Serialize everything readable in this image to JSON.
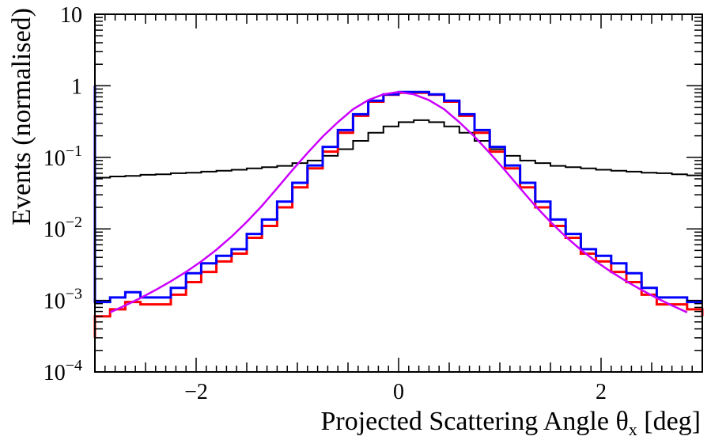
{
  "chart_data": {
    "type": "line",
    "title": "",
    "xlabel": "Projected Scattering Angle θx [deg]",
    "xlabel_parts": {
      "main": "Projected Scattering Angle θ",
      "sub": "x",
      "after": " [deg]"
    },
    "ylabel": "Events (normalised)",
    "xlim": [
      -3,
      3
    ],
    "ylim": [
      0.0001,
      10
    ],
    "yscale": "log",
    "x_ticks": [
      -2,
      0,
      2
    ],
    "x_tick_labels": [
      "−2",
      "0",
      "2"
    ],
    "y_ticks": [
      {
        "value": 10,
        "base": "10",
        "exp": ""
      },
      {
        "value": 1,
        "base": "1",
        "exp": ""
      },
      {
        "value": 0.1,
        "base": "10",
        "exp": "−1"
      },
      {
        "value": 0.01,
        "base": "10",
        "exp": "−2"
      },
      {
        "value": 0.001,
        "base": "10",
        "exp": "−3"
      },
      {
        "value": 0.0001,
        "base": "10",
        "exp": "−4"
      }
    ],
    "grid": false,
    "legend": "none",
    "bin_edges": [
      -3.0,
      -2.85,
      -2.7,
      -2.55,
      -2.4,
      -2.25,
      -2.1,
      -1.95,
      -1.8,
      -1.65,
      -1.5,
      -1.35,
      -1.2,
      -1.05,
      -0.9,
      -0.75,
      -0.6,
      -0.45,
      -0.3,
      -0.15,
      0.0,
      0.15,
      0.3,
      0.45,
      0.6,
      0.75,
      0.9,
      1.05,
      1.2,
      1.35,
      1.5,
      1.65,
      1.8,
      1.95,
      2.1,
      2.25,
      2.4,
      2.55,
      2.7,
      2.85,
      3.0
    ],
    "series": [
      {
        "color": "#000000",
        "style": "step",
        "width": 2,
        "values": [
          0.052,
          0.054,
          0.055,
          0.057,
          0.058,
          0.06,
          0.061,
          0.063,
          0.065,
          0.067,
          0.07,
          0.073,
          0.076,
          0.083,
          0.09,
          0.105,
          0.13,
          0.17,
          0.22,
          0.27,
          0.31,
          0.33,
          0.31,
          0.27,
          0.22,
          0.17,
          0.13,
          0.105,
          0.09,
          0.083,
          0.076,
          0.073,
          0.07,
          0.067,
          0.065,
          0.063,
          0.061,
          0.06,
          0.058,
          0.056,
          0.052
        ]
      },
      {
        "color": "#ff0000",
        "style": "step",
        "width": 3,
        "edge_left": 0.0003,
        "edge_right": 0.0003,
        "values": [
          0.0006,
          0.00075,
          0.00095,
          0.00088,
          0.00088,
          0.0012,
          0.0018,
          0.0025,
          0.0035,
          0.0045,
          0.0075,
          0.011,
          0.02,
          0.038,
          0.07,
          0.12,
          0.22,
          0.38,
          0.6,
          0.75,
          0.8,
          0.8,
          0.75,
          0.6,
          0.38,
          0.22,
          0.12,
          0.07,
          0.038,
          0.02,
          0.011,
          0.0075,
          0.0045,
          0.0035,
          0.0025,
          0.0018,
          0.0012,
          0.00088,
          0.00088,
          0.00075,
          0.0006
        ]
      },
      {
        "color": "#0000ff",
        "style": "step",
        "width": 3,
        "edge_left": 1.0,
        "edge_right": 0.00045,
        "values": [
          0.00095,
          0.0011,
          0.0013,
          0.0011,
          0.0011,
          0.0015,
          0.0024,
          0.0033,
          0.0042,
          0.0052,
          0.0085,
          0.0135,
          0.024,
          0.044,
          0.077,
          0.14,
          0.24,
          0.4,
          0.62,
          0.76,
          0.82,
          0.82,
          0.76,
          0.62,
          0.4,
          0.24,
          0.14,
          0.077,
          0.044,
          0.024,
          0.0135,
          0.0085,
          0.0052,
          0.0042,
          0.0033,
          0.0024,
          0.0015,
          0.0011,
          0.0011,
          0.00095,
          0.00095
        ]
      },
      {
        "color": "#cc00ff",
        "style": "curve",
        "width": 2.5,
        "x": [
          -2.85,
          -2.7,
          -2.55,
          -2.4,
          -2.25,
          -2.1,
          -1.95,
          -1.8,
          -1.65,
          -1.5,
          -1.35,
          -1.2,
          -1.05,
          -0.9,
          -0.75,
          -0.6,
          -0.45,
          -0.3,
          -0.15,
          0.0,
          0.15,
          0.3,
          0.45,
          0.6,
          0.75,
          0.9,
          1.05,
          1.2,
          1.35,
          1.5,
          1.65,
          1.8,
          1.95,
          2.1,
          2.25,
          2.4,
          2.55,
          2.7,
          2.85
        ],
        "y": [
          0.00068,
          0.00085,
          0.00108,
          0.0014,
          0.00185,
          0.0025,
          0.0035,
          0.0051,
          0.0078,
          0.0125,
          0.021,
          0.037,
          0.066,
          0.115,
          0.195,
          0.31,
          0.47,
          0.63,
          0.76,
          0.82,
          0.76,
          0.63,
          0.47,
          0.31,
          0.195,
          0.115,
          0.066,
          0.037,
          0.021,
          0.0125,
          0.0078,
          0.0051,
          0.0035,
          0.0025,
          0.00185,
          0.0014,
          0.00108,
          0.00085,
          0.00068
        ]
      }
    ]
  }
}
